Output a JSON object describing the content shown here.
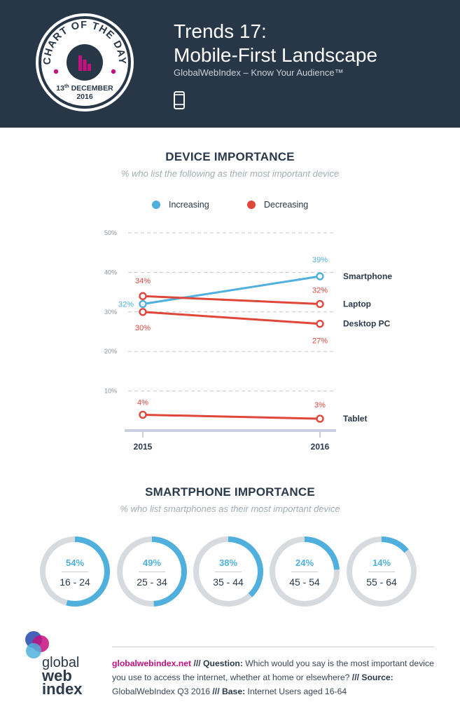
{
  "header": {
    "badge_top": "CHART OF THE DAY",
    "badge_day": "13",
    "badge_sup": "th",
    "badge_month": "DECEMBER",
    "badge_year": "2016",
    "title_line1": "Trends 17:",
    "title_line2": "Mobile-First Landscape",
    "subtitle": "GlobalWebIndex – Know Your Audience™",
    "icon": "smartphone-icon"
  },
  "colors": {
    "header_bg": "#283747",
    "increasing": "#4fb0dd",
    "decreasing": "#e0473b",
    "brand_pink": "#c4117f",
    "ring_track": "#d7dbe0"
  },
  "device_section": {
    "title": "DEVICE IMPORTANCE",
    "subtitle": "% who list the following as their most important device",
    "legend": [
      {
        "label": "Increasing",
        "color": "#4fb0dd"
      },
      {
        "label": "Decreasing",
        "color": "#e0473b"
      }
    ]
  },
  "chart_data": [
    {
      "type": "line",
      "title": "DEVICE IMPORTANCE",
      "subtitle": "% who list the following as their most important device",
      "x": [
        "2015",
        "2016"
      ],
      "ylim": [
        0,
        50
      ],
      "yticks": [
        "10%",
        "20%",
        "30%",
        "40%",
        "50%"
      ],
      "ytick_values": [
        10,
        20,
        30,
        40,
        50
      ],
      "grid": true,
      "legend_position": "top-center",
      "series": [
        {
          "name": "Smartphone",
          "trend": "Increasing",
          "values": [
            32,
            39
          ],
          "labels": [
            "32%",
            "39%"
          ]
        },
        {
          "name": "Laptop",
          "trend": "Decreasing",
          "values": [
            34,
            32
          ],
          "labels": [
            "34%",
            "32%"
          ]
        },
        {
          "name": "Desktop PC",
          "trend": "Decreasing",
          "values": [
            30,
            27
          ],
          "labels": [
            "30%",
            "27%"
          ]
        },
        {
          "name": "Tablet",
          "trend": "Decreasing",
          "values": [
            4,
            3
          ],
          "labels": [
            "4%",
            "3%"
          ]
        }
      ]
    },
    {
      "type": "pie",
      "title": "SMARTPHONE IMPORTANCE",
      "subtitle": "% who list smartphones as their most important device",
      "categories": [
        "16 - 24",
        "25 - 34",
        "35 - 44",
        "45 - 54",
        "55 - 64"
      ],
      "values": [
        54,
        49,
        38,
        24,
        14
      ],
      "labels": [
        "54%",
        "49%",
        "38%",
        "24%",
        "14%"
      ]
    }
  ],
  "smartphone_section": {
    "title": "SMARTPHONE IMPORTANCE",
    "subtitle": "% who list smartphones as their most important device"
  },
  "footer": {
    "logo_line1": "global",
    "logo_line2": "web",
    "logo_line3": "index",
    "site": "globalwebindex.net",
    "sep1": " /// ",
    "question_label": "Question:",
    "question_text": " Which would you say is the most important device you use to access the internet, whether at home or elsewhere?",
    "sep2": " /// ",
    "source_label": "Source:",
    "source_text": " GlobalWebIndex Q3 2016",
    "sep3": " /// ",
    "base_label": "Base:",
    "base_text": " Internet Users aged 16-64"
  }
}
